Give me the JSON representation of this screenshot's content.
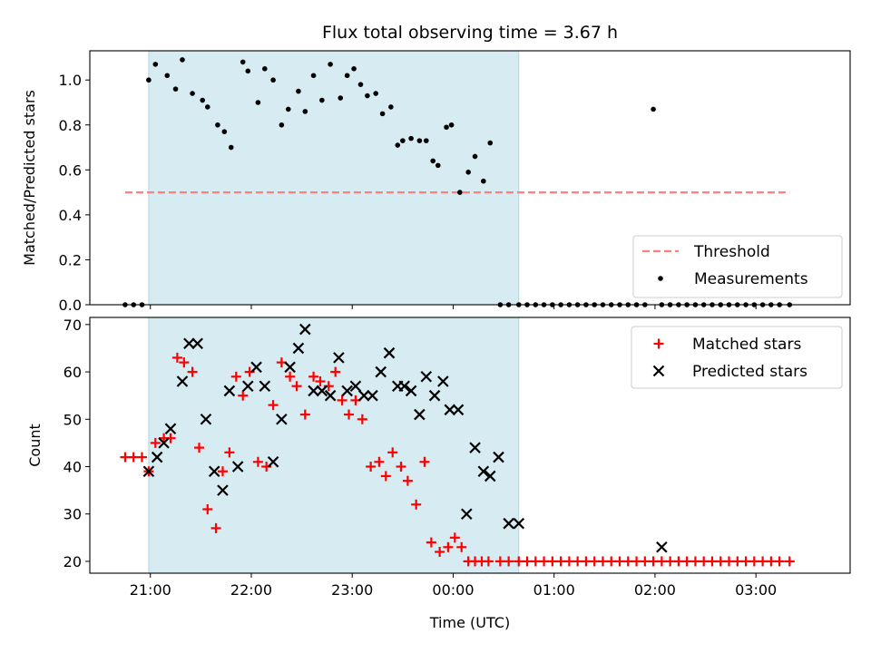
{
  "chart_data": [
    {
      "type": "scatter",
      "title": "Flux total observing time = 3.67 h",
      "ylabel": "Matched/Predicted stars",
      "xlabel": "",
      "ylim": [
        0,
        1.13
      ],
      "yticks": [
        "0.0",
        "0.2",
        "0.4",
        "0.6",
        "0.8",
        "1.0"
      ],
      "ytick_values": [
        0,
        0.2,
        0.4,
        0.6,
        0.8,
        1.0
      ],
      "shaded_span": [
        "20:59",
        "00:39"
      ],
      "shade_color": "#add8e6",
      "legend_position": "lower-right",
      "threshold": {
        "name": "Threshold",
        "value": 0.5,
        "x_range": [
          "20:45",
          "03:20"
        ],
        "color": "#ff7f7f",
        "style": "dashed"
      },
      "series": [
        {
          "name": "Measurements",
          "color": "#000000",
          "marker": "dot",
          "x": [
            "20:45",
            "20:50",
            "20:55",
            "20:59",
            "21:03",
            "21:10",
            "21:15",
            "21:19",
            "21:25",
            "21:31",
            "21:34",
            "21:40",
            "21:44",
            "21:48",
            "21:55",
            "21:58",
            "22:04",
            "22:08",
            "22:13",
            "22:18",
            "22:22",
            "22:28",
            "22:32",
            "22:37",
            "22:42",
            "22:47",
            "22:53",
            "22:57",
            "23:01",
            "23:05",
            "23:09",
            "23:14",
            "23:18",
            "23:23",
            "23:27",
            "23:30",
            "23:35",
            "23:40",
            "23:44",
            "23:48",
            "23:51",
            "23:56",
            "23:59",
            "00:04",
            "00:09",
            "00:13",
            "00:18",
            "00:22",
            "00:28",
            "00:33",
            "00:39",
            "00:44",
            "00:49",
            "00:54",
            "00:59",
            "01:04",
            "01:09",
            "01:14",
            "01:19",
            "01:24",
            "01:29",
            "01:34",
            "01:39",
            "01:44",
            "01:49",
            "01:54",
            "01:59",
            "02:04",
            "02:09",
            "02:14",
            "02:19",
            "02:24",
            "02:29",
            "02:34",
            "02:39",
            "02:44",
            "02:49",
            "02:54",
            "02:59",
            "03:04",
            "03:09",
            "03:14",
            "03:20"
          ],
          "y": [
            0,
            0,
            0,
            1.0,
            1.07,
            1.02,
            0.96,
            1.09,
            0.94,
            0.91,
            0.88,
            0.8,
            0.77,
            0.7,
            1.08,
            1.04,
            0.9,
            1.05,
            1.0,
            0.8,
            0.87,
            0.95,
            0.86,
            1.02,
            0.91,
            1.07,
            0.92,
            1.02,
            1.05,
            0.98,
            0.93,
            0.94,
            0.85,
            0.88,
            0.71,
            0.73,
            0.74,
            0.73,
            0.73,
            0.64,
            0.62,
            0.79,
            0.8,
            0.5,
            0.59,
            0.66,
            0.55,
            0.72,
            0,
            0,
            0,
            0,
            0,
            0,
            0,
            0,
            0,
            0,
            0,
            0,
            0,
            0,
            0,
            0,
            0,
            0,
            0.87,
            0,
            0,
            0,
            0,
            0,
            0,
            0,
            0,
            0,
            0,
            0,
            0,
            0,
            0,
            0,
            0
          ]
        }
      ]
    },
    {
      "type": "scatter",
      "title": "",
      "ylabel": "Count",
      "xlabel": "Time (UTC)",
      "ylim": [
        17.5,
        71.5
      ],
      "yticks": [
        "20",
        "30",
        "40",
        "50",
        "60",
        "70"
      ],
      "ytick_values": [
        20,
        30,
        40,
        50,
        60,
        70
      ],
      "xlim": [
        "20:24",
        "03:56"
      ],
      "xticks": [
        "21:00",
        "22:00",
        "23:00",
        "00:00",
        "01:00",
        "02:00",
        "03:00"
      ],
      "shaded_span": [
        "20:59",
        "00:39"
      ],
      "shade_color": "#add8e6",
      "legend_position": "top-right",
      "series": [
        {
          "name": "Matched stars",
          "color": "#ff0000",
          "marker": "plus",
          "x": [
            "20:45",
            "20:50",
            "20:55",
            "20:59",
            "21:03",
            "21:08",
            "21:12",
            "21:16",
            "21:20",
            "21:25",
            "21:29",
            "21:34",
            "21:39",
            "21:43",
            "21:47",
            "21:51",
            "21:55",
            "21:59",
            "22:04",
            "22:09",
            "22:13",
            "22:18",
            "22:23",
            "22:27",
            "22:32",
            "22:37",
            "22:41",
            "22:46",
            "22:50",
            "22:54",
            "22:58",
            "23:02",
            "23:06",
            "23:11",
            "23:16",
            "23:20",
            "23:24",
            "23:29",
            "23:33",
            "23:38",
            "23:43",
            "23:47",
            "23:52",
            "23:57",
            "00:01",
            "00:05",
            "00:09",
            "00:13",
            "00:17",
            "00:21",
            "00:28",
            "00:33",
            "00:39",
            "00:44",
            "00:49",
            "00:54",
            "00:59",
            "01:04",
            "01:09",
            "01:14",
            "01:19",
            "01:24",
            "01:29",
            "01:34",
            "01:39",
            "01:44",
            "01:49",
            "01:54",
            "01:59",
            "02:04",
            "02:09",
            "02:14",
            "02:19",
            "02:24",
            "02:29",
            "02:34",
            "02:39",
            "02:44",
            "02:49",
            "02:54",
            "02:59",
            "03:04",
            "03:09",
            "03:14",
            "03:20"
          ],
          "y": [
            42,
            42,
            42,
            39,
            45,
            46,
            46,
            63,
            62,
            60,
            44,
            31,
            27,
            39,
            43,
            59,
            55,
            60,
            41,
            40,
            53,
            62,
            59,
            57,
            51,
            59,
            58,
            57,
            60,
            54,
            51,
            54,
            50,
            40,
            41,
            38,
            43,
            40,
            37,
            32,
            41,
            24,
            22,
            23,
            25,
            23,
            20,
            20,
            20,
            20,
            20,
            20,
            20,
            20,
            20,
            20,
            20,
            20,
            20,
            20,
            20,
            20,
            20,
            20,
            20,
            20,
            20,
            20,
            20,
            20,
            20,
            20,
            20,
            20,
            20,
            20,
            20,
            20,
            20,
            20,
            20,
            20,
            20,
            20,
            20
          ]
        },
        {
          "name": "Predicted stars",
          "color": "#000000",
          "marker": "x",
          "x": [
            "20:59",
            "21:04",
            "21:08",
            "21:12",
            "21:19",
            "21:23",
            "21:28",
            "21:33",
            "21:38",
            "21:43",
            "21:47",
            "21:52",
            "21:58",
            "22:03",
            "22:08",
            "22:13",
            "22:18",
            "22:23",
            "22:28",
            "22:32",
            "22:37",
            "22:42",
            "22:47",
            "22:52",
            "22:57",
            "23:02",
            "23:07",
            "23:12",
            "23:17",
            "23:22",
            "23:27",
            "23:31",
            "23:35",
            "23:40",
            "23:44",
            "23:49",
            "23:54",
            "23:58",
            "00:03",
            "00:08",
            "00:13",
            "00:18",
            "00:22",
            "00:27",
            "00:33",
            "00:39",
            "02:04"
          ],
          "y": [
            39,
            42,
            45,
            48,
            58,
            66,
            66,
            50,
            39,
            35,
            56,
            40,
            57,
            61,
            57,
            41,
            50,
            61,
            65,
            69,
            56,
            56,
            55,
            63,
            56,
            57,
            55,
            55,
            60,
            64,
            57,
            57,
            56,
            51,
            59,
            55,
            58,
            52,
            52,
            30,
            44,
            39,
            38,
            42,
            28,
            28,
            23
          ]
        }
      ]
    }
  ]
}
